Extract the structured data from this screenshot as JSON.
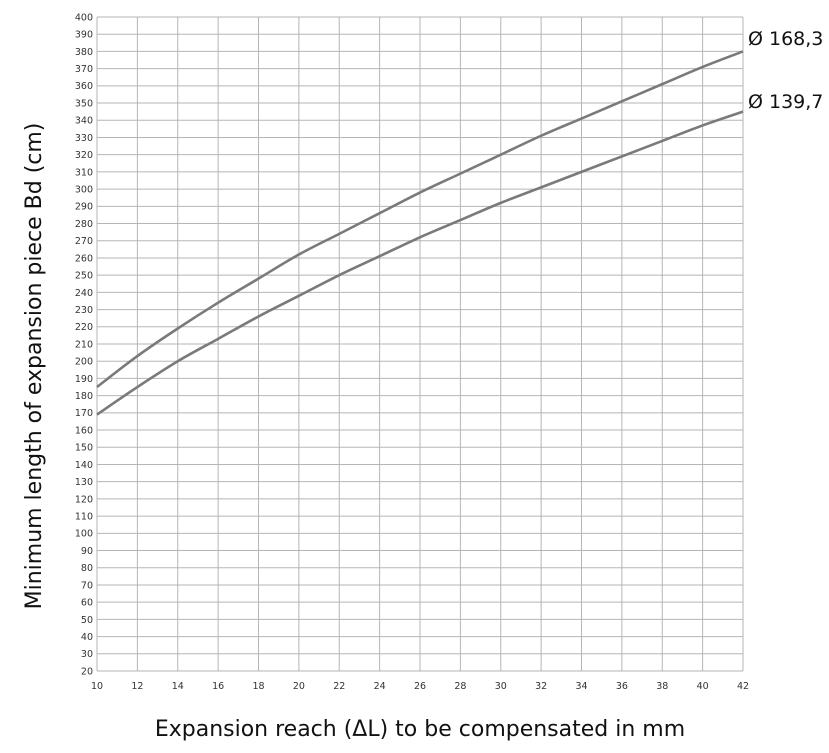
{
  "chart_data": {
    "type": "line",
    "xlabel": "Expansion reach (ΔL) to be compensated in mm",
    "ylabel": "Minimum length of expansion piece Bd (cm)",
    "xlim": [
      10,
      42
    ],
    "ylim": [
      20,
      400
    ],
    "x_ticks": [
      10,
      12,
      14,
      16,
      18,
      20,
      22,
      24,
      26,
      28,
      30,
      32,
      34,
      36,
      38,
      40,
      42
    ],
    "y_ticks": [
      20,
      30,
      40,
      50,
      60,
      70,
      80,
      90,
      100,
      110,
      120,
      130,
      140,
      150,
      160,
      170,
      180,
      190,
      200,
      210,
      220,
      230,
      240,
      250,
      260,
      270,
      280,
      290,
      300,
      310,
      320,
      330,
      340,
      350,
      360,
      370,
      380,
      390,
      400
    ],
    "grid": true,
    "legend": "end-of-line labels",
    "series": [
      {
        "name": "Ø 168,3",
        "color": "#7a7a7a",
        "x": [
          10,
          12,
          14,
          16,
          18,
          20,
          22,
          24,
          26,
          28,
          30,
          32,
          34,
          36,
          38,
          40,
          42
        ],
        "y": [
          185,
          203,
          219,
          234,
          248,
          262,
          274,
          286,
          298,
          309,
          320,
          331,
          341,
          351,
          361,
          371,
          380
        ]
      },
      {
        "name": "Ø 139,7",
        "color": "#7a7a7a",
        "x": [
          10,
          12,
          14,
          16,
          18,
          20,
          22,
          24,
          26,
          28,
          30,
          32,
          34,
          36,
          38,
          40,
          42
        ],
        "y": [
          169,
          185,
          200,
          213,
          226,
          238,
          250,
          261,
          272,
          282,
          292,
          301,
          310,
          319,
          328,
          337,
          345
        ]
      }
    ]
  }
}
